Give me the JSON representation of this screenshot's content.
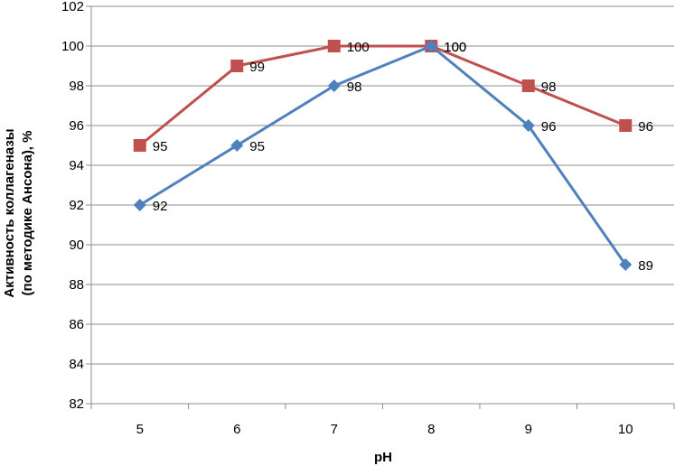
{
  "chart_data": {
    "type": "line",
    "title": "",
    "xlabel": "pH",
    "ylabel_lines": [
      "Активность коллагеназы",
      "(по методике Ансона), %"
    ],
    "categories": [
      "5",
      "6",
      "7",
      "8",
      "9",
      "10"
    ],
    "ylim": [
      82,
      102
    ],
    "ystep": 2,
    "yticks": [
      "82",
      "84",
      "86",
      "88",
      "90",
      "92",
      "94",
      "96",
      "98",
      "100",
      "102"
    ],
    "grid": true,
    "legend": "none",
    "series": [
      {
        "name": "series-blue",
        "color": "#4F81BD",
        "marker": "diamond",
        "values": [
          92,
          95,
          98,
          100,
          96,
          89
        ],
        "labels": [
          "92",
          "95",
          "98",
          "100",
          "96",
          "89"
        ]
      },
      {
        "name": "series-red",
        "color": "#C0504D",
        "marker": "square",
        "values": [
          95,
          99,
          100,
          100,
          98,
          96
        ],
        "labels": [
          "95",
          "99",
          "100",
          "100",
          "98",
          "96"
        ]
      }
    ]
  }
}
